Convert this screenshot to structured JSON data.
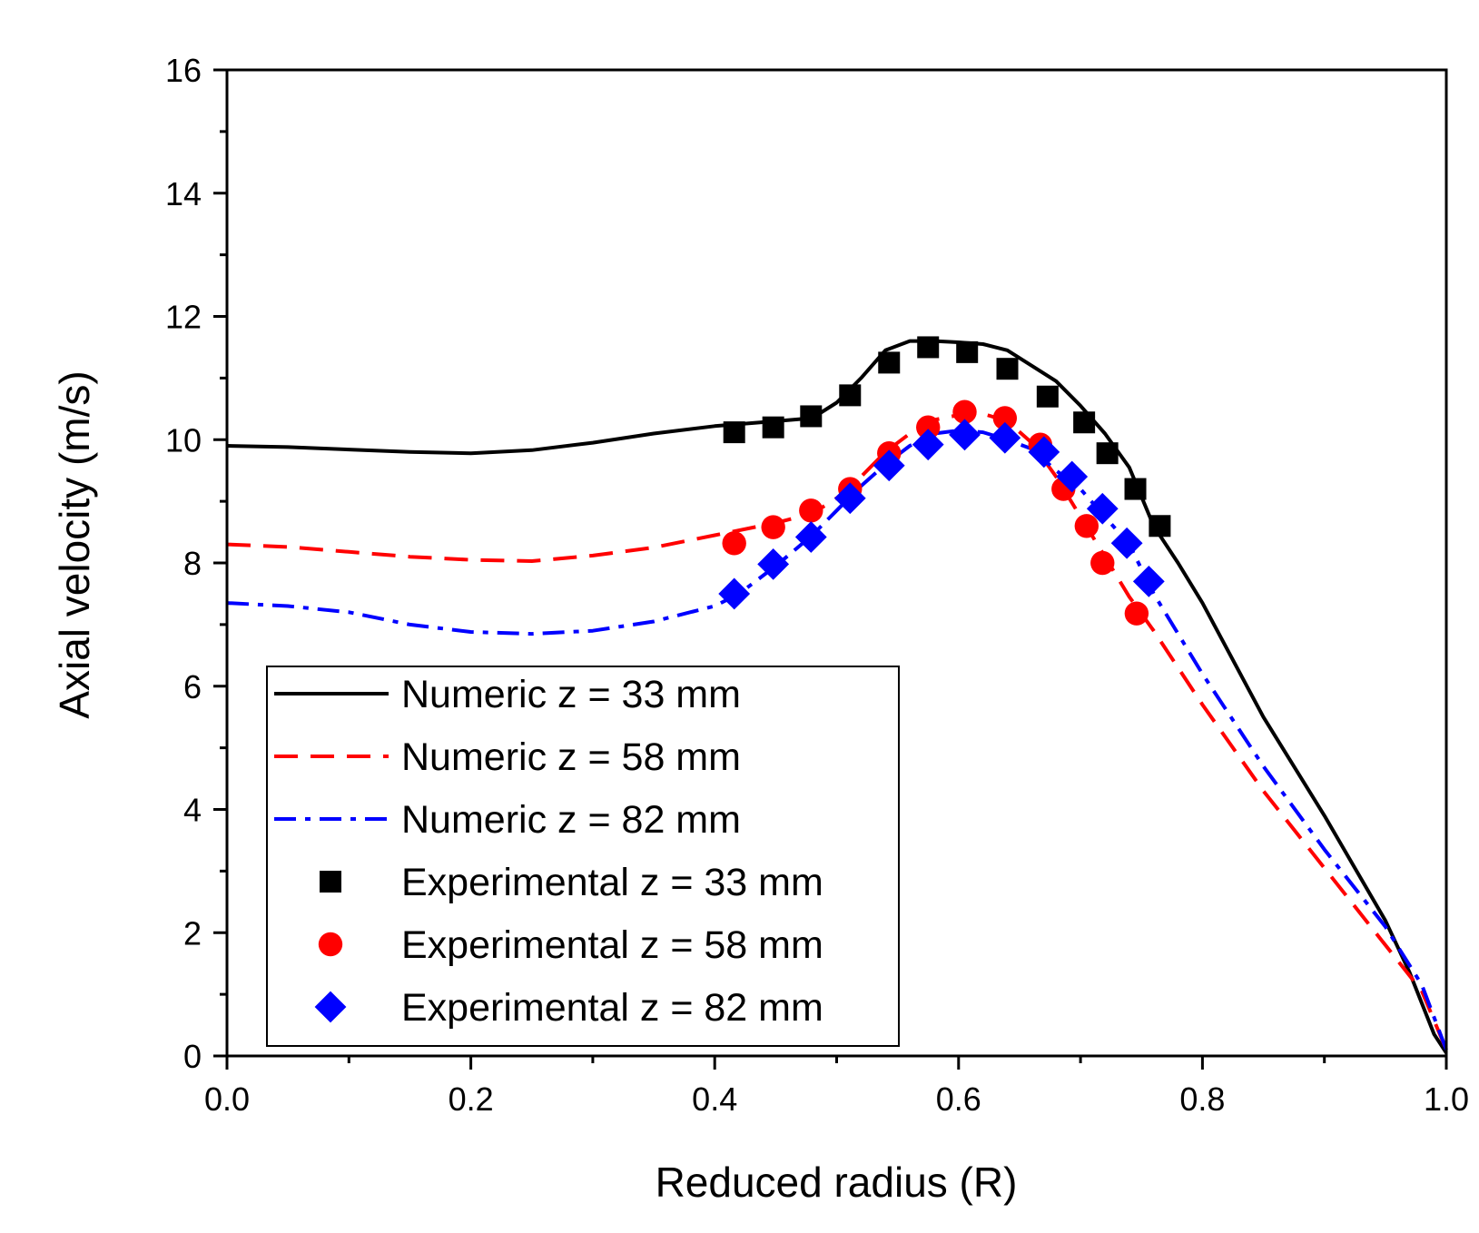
{
  "chart_data": {
    "type": "line",
    "title": "",
    "xlabel": "Reduced radius (R)",
    "ylabel": "Axial velocity (m/s)",
    "xlim": [
      0.0,
      1.0
    ],
    "ylim": [
      0,
      16
    ],
    "x_ticks": [
      0.0,
      0.2,
      0.4,
      0.6,
      0.8,
      1.0
    ],
    "x_tick_labels": [
      "0.0",
      "0.2",
      "0.4",
      "0.6",
      "0.8",
      "1.0"
    ],
    "y_ticks": [
      0,
      2,
      4,
      6,
      8,
      10,
      12,
      14,
      16
    ],
    "y_tick_labels": [
      "0",
      "2",
      "4",
      "6",
      "8",
      "10",
      "12",
      "14",
      "16"
    ],
    "x_minor_step": 0.1,
    "y_minor_step": 1,
    "grid": false,
    "legend_position": "bottom-left",
    "series": [
      {
        "name": "Numeric z = 33 mm",
        "kind": "line",
        "style": "solid",
        "color": "#000000",
        "x": [
          0.0,
          0.05,
          0.1,
          0.15,
          0.2,
          0.25,
          0.3,
          0.35,
          0.4,
          0.45,
          0.48,
          0.5,
          0.52,
          0.54,
          0.56,
          0.58,
          0.6,
          0.62,
          0.64,
          0.66,
          0.68,
          0.7,
          0.72,
          0.74,
          0.76,
          0.78,
          0.8,
          0.85,
          0.9,
          0.95,
          0.97,
          0.99,
          1.0
        ],
        "y": [
          9.9,
          9.88,
          9.84,
          9.8,
          9.78,
          9.83,
          9.95,
          10.1,
          10.22,
          10.3,
          10.35,
          10.6,
          11.0,
          11.45,
          11.6,
          11.6,
          11.58,
          11.55,
          11.45,
          11.2,
          10.95,
          10.55,
          10.1,
          9.55,
          8.6,
          8.0,
          7.35,
          5.5,
          3.9,
          2.2,
          1.35,
          0.35,
          0.05
        ]
      },
      {
        "name": "Numeric z = 58 mm",
        "kind": "line",
        "style": "dashed",
        "color": "#ff0000",
        "x": [
          0.0,
          0.05,
          0.1,
          0.15,
          0.2,
          0.25,
          0.3,
          0.35,
          0.4,
          0.45,
          0.48,
          0.5,
          0.52,
          0.54,
          0.56,
          0.58,
          0.6,
          0.62,
          0.64,
          0.66,
          0.68,
          0.7,
          0.72,
          0.74,
          0.76,
          0.8,
          0.85,
          0.9,
          0.95,
          0.98,
          1.0
        ],
        "y": [
          8.3,
          8.26,
          8.18,
          8.1,
          8.05,
          8.03,
          8.12,
          8.25,
          8.45,
          8.65,
          8.8,
          9.05,
          9.4,
          9.8,
          10.1,
          10.32,
          10.4,
          10.42,
          10.3,
          9.95,
          9.4,
          8.75,
          8.1,
          7.45,
          6.9,
          5.7,
          4.3,
          3.05,
          1.8,
          1.05,
          0.1
        ]
      },
      {
        "name": "Numeric z = 82 mm",
        "kind": "line",
        "style": "dashdot",
        "color": "#0000ff",
        "x": [
          0.0,
          0.05,
          0.1,
          0.15,
          0.2,
          0.25,
          0.3,
          0.35,
          0.4,
          0.42,
          0.45,
          0.48,
          0.5,
          0.52,
          0.54,
          0.56,
          0.58,
          0.6,
          0.62,
          0.64,
          0.66,
          0.68,
          0.7,
          0.72,
          0.74,
          0.76,
          0.8,
          0.85,
          0.9,
          0.95,
          0.98,
          1.0
        ],
        "y": [
          7.35,
          7.3,
          7.2,
          7.0,
          6.88,
          6.85,
          6.9,
          7.05,
          7.3,
          7.5,
          7.95,
          8.45,
          8.85,
          9.25,
          9.6,
          9.9,
          10.1,
          10.15,
          10.12,
          10.0,
          9.85,
          9.5,
          9.2,
          8.75,
          8.3,
          7.5,
          6.2,
          4.7,
          3.35,
          2.1,
          1.15,
          0.1
        ]
      },
      {
        "name": "Experimental z = 33 mm",
        "kind": "marker",
        "marker": "square",
        "color": "#000000",
        "x": [
          0.416,
          0.448,
          0.479,
          0.511,
          0.543,
          0.575,
          0.607,
          0.64,
          0.673,
          0.703,
          0.722,
          0.745,
          0.765
        ],
        "y": [
          10.12,
          10.2,
          10.38,
          10.72,
          11.25,
          11.5,
          11.42,
          11.15,
          10.7,
          10.28,
          9.78,
          9.2,
          8.6
        ]
      },
      {
        "name": "Experimental z = 58 mm",
        "kind": "marker",
        "marker": "circle",
        "color": "#ff0000",
        "x": [
          0.416,
          0.448,
          0.479,
          0.511,
          0.543,
          0.575,
          0.605,
          0.638,
          0.667,
          0.686,
          0.705,
          0.718,
          0.746
        ],
        "y": [
          8.32,
          8.58,
          8.85,
          9.2,
          9.78,
          10.2,
          10.45,
          10.35,
          9.92,
          9.2,
          8.6,
          8.0,
          7.18
        ]
      },
      {
        "name": "Experimental z = 82 mm",
        "kind": "marker",
        "marker": "diamond",
        "color": "#0000ff",
        "x": [
          0.416,
          0.448,
          0.479,
          0.511,
          0.543,
          0.575,
          0.605,
          0.638,
          0.67,
          0.693,
          0.718,
          0.738,
          0.756
        ],
        "y": [
          7.5,
          7.98,
          8.42,
          9.05,
          9.58,
          9.92,
          10.08,
          10.03,
          9.8,
          9.4,
          8.88,
          8.32,
          7.7
        ]
      }
    ]
  }
}
